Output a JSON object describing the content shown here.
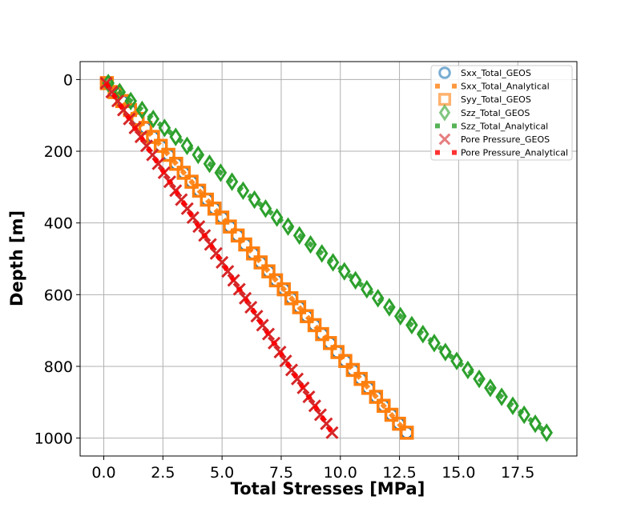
{
  "chart_data": {
    "type": "scatter",
    "xlabel": "Total Stresses [MPa]",
    "ylabel": "Depth [m]",
    "xlim": [
      -1.0,
      20.0
    ],
    "ylim": [
      1050,
      -50
    ],
    "y_inverted": true,
    "grid": true,
    "xticks": [
      0.0,
      2.5,
      5.0,
      7.5,
      10.0,
      12.5,
      15.0,
      17.5
    ],
    "xtick_labels": [
      "0.0",
      "2.5",
      "5.0",
      "7.5",
      "10.0",
      "12.5",
      "15.0",
      "17.5"
    ],
    "yticks": [
      0,
      200,
      400,
      600,
      800,
      1000
    ],
    "ytick_labels": [
      "0",
      "200",
      "400",
      "600",
      "800",
      "1000"
    ],
    "legend_position": "top-right",
    "depth": [
      10,
      35,
      60,
      85,
      110,
      135,
      160,
      185,
      210,
      235,
      260,
      285,
      310,
      335,
      360,
      385,
      410,
      435,
      460,
      485,
      510,
      535,
      560,
      585,
      610,
      635,
      660,
      685,
      710,
      735,
      760,
      785,
      810,
      835,
      860,
      885,
      910,
      935,
      960,
      985
    ],
    "series": [
      {
        "name": "Sxx_Total_GEOS",
        "marker": "circle",
        "color": "#1f77b4",
        "key": "sh"
      },
      {
        "name": "Sxx_Total_Analytical",
        "marker": "dashed-line",
        "color": "#ff7f0e",
        "key": "sh"
      },
      {
        "name": "Syy_Total_GEOS",
        "marker": "square",
        "color": "#ff7f0e",
        "key": "sh"
      },
      {
        "name": "Szz_Total_GEOS",
        "marker": "diamond",
        "color": "#2ca02c",
        "key": "sv"
      },
      {
        "name": "Szz_Total_Analytical",
        "marker": "dashed-line",
        "color": "#2ca02c",
        "key": "sv"
      },
      {
        "name": "Pore Pressure_GEOS",
        "marker": "x",
        "color": "#d62728",
        "key": "pp"
      },
      {
        "name": "Pore Pressure_Analytical",
        "marker": "dashed-line",
        "color": "#ff0000",
        "key": "pp"
      }
    ],
    "values": {
      "sh": [
        0.13,
        0.46,
        0.78,
        1.11,
        1.43,
        1.76,
        2.08,
        2.41,
        2.73,
        3.06,
        3.38,
        3.71,
        4.03,
        4.36,
        4.68,
        5.01,
        5.33,
        5.66,
        5.98,
        6.31,
        6.63,
        6.96,
        7.28,
        7.61,
        7.93,
        8.26,
        8.58,
        8.91,
        9.23,
        9.56,
        9.88,
        10.21,
        10.53,
        10.86,
        11.18,
        11.51,
        11.83,
        12.16,
        12.48,
        12.81
      ],
      "sv": [
        0.19,
        0.67,
        1.14,
        1.62,
        2.09,
        2.57,
        3.04,
        3.52,
        3.99,
        4.47,
        4.94,
        5.42,
        5.89,
        6.37,
        6.84,
        7.32,
        7.79,
        8.27,
        8.74,
        9.22,
        9.69,
        10.17,
        10.64,
        11.12,
        11.59,
        12.07,
        12.54,
        13.02,
        13.49,
        13.97,
        14.44,
        14.92,
        15.39,
        15.87,
        16.34,
        16.82,
        17.29,
        17.77,
        18.24,
        18.72
      ],
      "pp": [
        0.1,
        0.34,
        0.59,
        0.83,
        1.08,
        1.32,
        1.57,
        1.81,
        2.06,
        2.3,
        2.55,
        2.79,
        3.04,
        3.28,
        3.53,
        3.77,
        4.02,
        4.26,
        4.51,
        4.75,
        5.0,
        5.24,
        5.49,
        5.73,
        5.98,
        6.22,
        6.47,
        6.71,
        6.96,
        7.2,
        7.45,
        7.69,
        7.94,
        8.18,
        8.43,
        8.67,
        8.92,
        9.16,
        9.41,
        9.65
      ]
    }
  }
}
